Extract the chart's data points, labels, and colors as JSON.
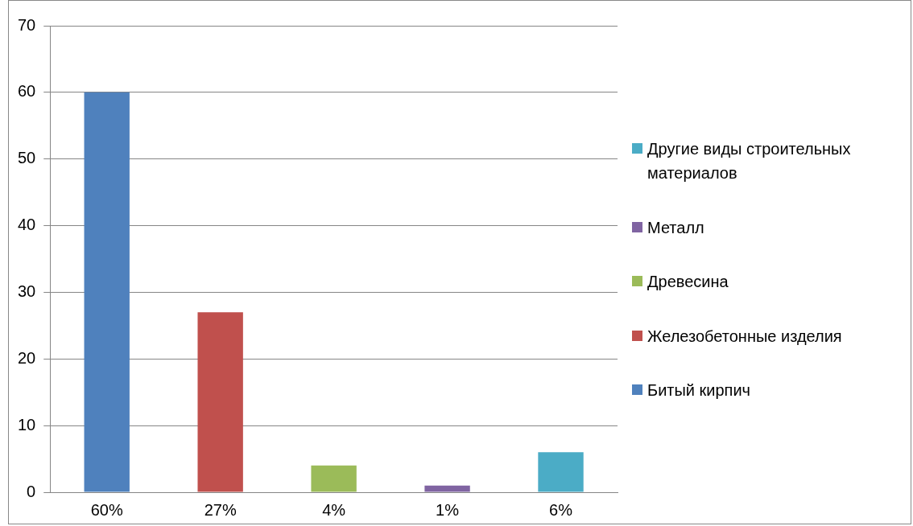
{
  "chart_data": {
    "type": "bar",
    "categories": [
      "60%",
      "27%",
      "4%",
      "1%",
      "6%"
    ],
    "series": [
      {
        "name": "Битый кирпич",
        "color": "#4f81bd",
        "values": [
          60,
          null,
          null,
          null,
          null
        ]
      },
      {
        "name": "Железобетонные изделия",
        "color": "#c0504d",
        "values": [
          null,
          27,
          null,
          null,
          null
        ]
      },
      {
        "name": "Древесина",
        "color": "#9bbb59",
        "values": [
          null,
          null,
          4,
          null,
          null
        ]
      },
      {
        "name": "Металл",
        "color": "#8064a2",
        "values": [
          null,
          null,
          null,
          1,
          null
        ]
      },
      {
        "name": "Другие виды строительных материалов",
        "color": "#4bacc6",
        "values": [
          null,
          null,
          null,
          null,
          6
        ]
      }
    ],
    "ylim": [
      0,
      70
    ],
    "yticks": [
      0,
      10,
      20,
      30,
      40,
      50,
      60,
      70
    ],
    "grid": "y",
    "legend": "right"
  }
}
